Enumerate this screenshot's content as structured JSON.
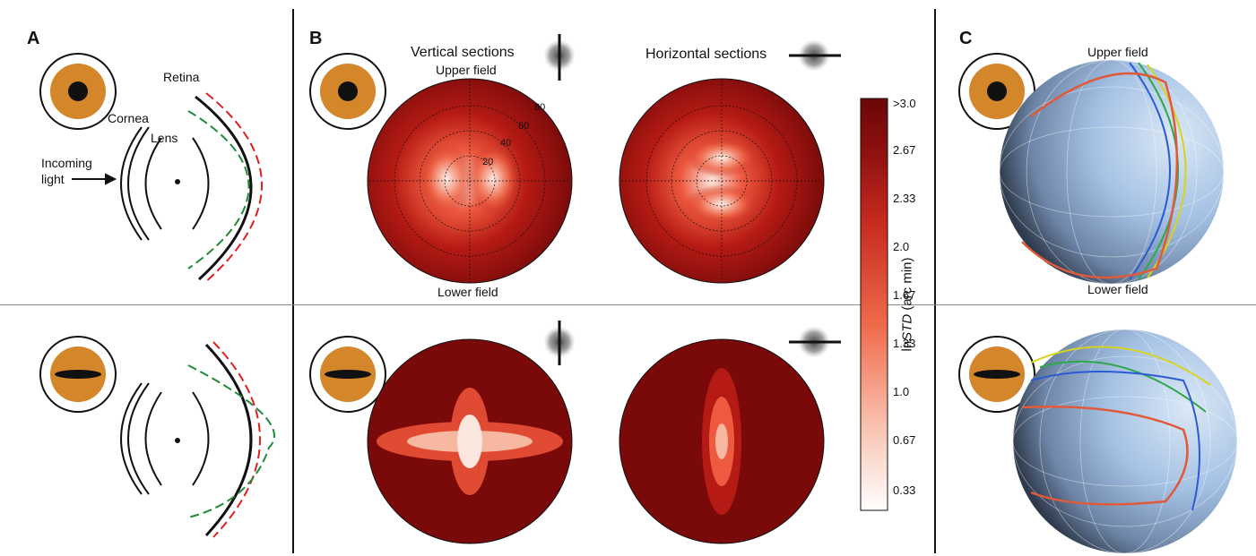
{
  "panels": {
    "a": "A",
    "b": "B",
    "c": "C"
  },
  "panel_a": {
    "retina": "Retina",
    "cornea": "Cornea",
    "lens": "Lens",
    "incoming_line1": "Incoming",
    "incoming_line2": "light"
  },
  "panel_b": {
    "vertical_sections": "Vertical sections",
    "horizontal_sections": "Horizontal sections",
    "upper_field": "Upper field",
    "lower_field": "Lower field",
    "ecc_labels": [
      "20",
      "40",
      "60",
      "80"
    ]
  },
  "colorbar": {
    "title_prefix": "ln",
    "title_italic": "STD",
    "title_suffix": " (arc min)",
    "ticks": [
      ">3.0",
      "2.67",
      "2.33",
      "2.0",
      "1.67",
      "1.33",
      "1.0",
      "0.67",
      "0.33"
    ]
  },
  "panel_c": {
    "upper_field": "Upper field",
    "lower_field": "Lower field"
  },
  "colors": {
    "iris": "#d4862a",
    "dark_red": "#7a0a0a",
    "red_dashed": "#e02020",
    "green_dashed": "#1e8a3a",
    "sphere": "#9dbbe0"
  }
}
